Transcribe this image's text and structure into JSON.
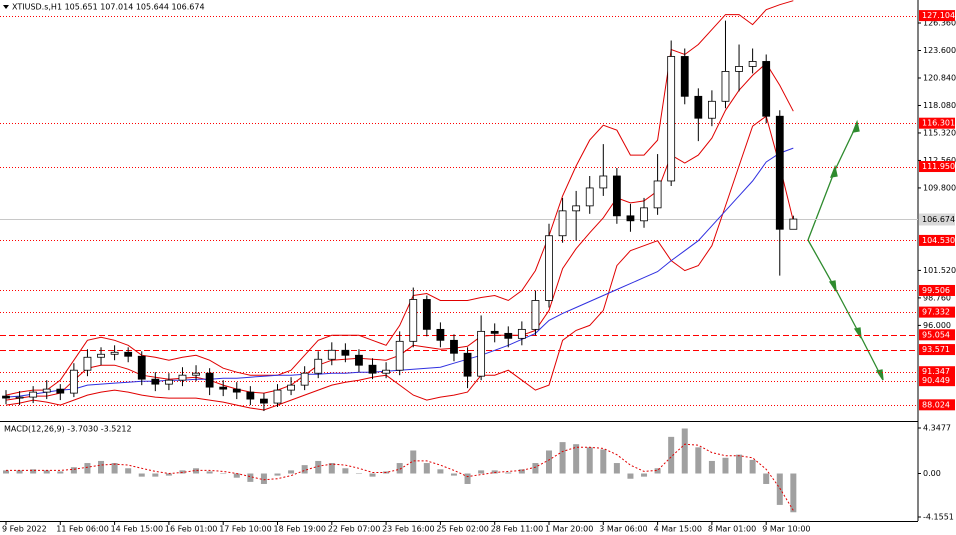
{
  "chart_data": [
    {
      "type": "candlestick",
      "title": "XTIUSD.s,H1  105.651 107.014 105.644 106.674",
      "categories": [
        "9 Feb 2022",
        null,
        null,
        null,
        "11 Feb 06:00",
        null,
        null,
        null,
        "14 Feb 15:00",
        null,
        null,
        null,
        "16 Feb 01:00",
        null,
        null,
        null,
        "17 Feb 10:00",
        null,
        null,
        null,
        "18 Feb 19:00",
        null,
        null,
        null,
        "22 Feb 07:00",
        null,
        null,
        null,
        "23 Feb 16:00",
        null,
        null,
        null,
        "25 Feb 02:00",
        null,
        null,
        null,
        "28 Feb 11:00",
        null,
        null,
        null,
        "1 Mar 20:00",
        null,
        null,
        null,
        "3 Mar 06:00",
        null,
        null,
        null,
        "4 Mar 15:00",
        null,
        null,
        null,
        "8 Mar 01:00",
        null,
        null,
        null,
        "9 Mar 10:00",
        null,
        null
      ],
      "open": [
        88.9,
        88.7,
        88.8,
        89.3,
        89.6,
        89.2,
        91.5,
        92.8,
        93.1,
        93.3,
        92.9,
        90.6,
        90.1,
        90.5,
        91.0,
        91.2,
        89.8,
        89.6,
        89.3,
        88.6,
        88.2,
        89.5,
        90.0,
        91.2,
        92.6,
        93.5,
        93.0,
        92.0,
        91.2,
        91.5,
        94.4,
        98.6,
        95.6,
        94.5,
        93.2,
        90.9,
        95.4,
        95.2,
        94.7,
        95.6,
        98.5,
        105.0,
        107.5,
        108.0,
        109.8,
        111.0,
        107.0,
        106.5,
        107.8,
        110.5,
        123.0,
        119.0,
        116.8,
        118.5,
        121.5,
        122.0,
        122.5,
        117.0,
        105.651
      ],
      "high": [
        89.5,
        89.4,
        89.9,
        90.5,
        90.1,
        92.2,
        93.6,
        93.8,
        94.0,
        93.8,
        93.4,
        91.3,
        91.2,
        91.8,
        92.0,
        91.7,
        90.5,
        90.3,
        89.9,
        89.2,
        90.1,
        90.8,
        91.9,
        93.4,
        94.3,
        94.2,
        93.6,
        92.7,
        92.3,
        95.4,
        99.8,
        99.0,
        96.3,
        95.1,
        93.8,
        97.0,
        96.2,
        95.9,
        96.4,
        99.5,
        106.2,
        108.8,
        109.5,
        111.0,
        114.2,
        111.8,
        108.2,
        108.8,
        113.2,
        124.6,
        123.8,
        119.8,
        119.6,
        126.6,
        124.2,
        123.8,
        123.2,
        117.6,
        107.014
      ],
      "low": [
        88.1,
        88.0,
        88.2,
        88.6,
        88.5,
        88.8,
        90.9,
        92.0,
        92.5,
        92.3,
        90.0,
        89.4,
        89.5,
        89.9,
        90.4,
        89.0,
        88.9,
        88.6,
        88.0,
        87.4,
        87.8,
        89.0,
        89.5,
        90.7,
        92.0,
        92.3,
        91.3,
        90.6,
        90.7,
        91.0,
        93.8,
        94.9,
        93.8,
        92.4,
        89.7,
        90.5,
        94.3,
        93.8,
        94.0,
        95.0,
        97.8,
        104.3,
        104.5,
        107.2,
        109.0,
        106.2,
        105.4,
        105.8,
        107.1,
        110.0,
        118.2,
        114.5,
        116.0,
        117.8,
        119.5,
        121.3,
        116.3,
        101.0,
        105.644
      ],
      "close": [
        88.7,
        88.8,
        89.3,
        89.6,
        89.2,
        91.5,
        92.8,
        93.1,
        93.3,
        92.9,
        90.6,
        90.1,
        90.5,
        91.0,
        91.2,
        89.8,
        89.6,
        89.3,
        88.6,
        88.2,
        89.5,
        90.0,
        91.2,
        92.6,
        93.5,
        93.0,
        92.0,
        91.2,
        91.5,
        94.4,
        98.6,
        95.6,
        94.5,
        93.2,
        90.9,
        95.4,
        95.2,
        94.7,
        95.6,
        98.5,
        105.0,
        107.5,
        108.0,
        109.8,
        111.0,
        107.0,
        106.5,
        107.8,
        110.5,
        123.0,
        119.0,
        116.8,
        118.5,
        121.5,
        122.0,
        122.5,
        117.0,
        105.651,
        106.674
      ],
      "candle_color": "#000000",
      "overlays": [
        {
          "color": "#e00000",
          "values": [
            89.0,
            89.3,
            89.5,
            89.5,
            90.5,
            92.5,
            94.5,
            94.8,
            94.5,
            94.0,
            93.0,
            92.8,
            92.5,
            92.8,
            93.0,
            92.5,
            91.7,
            91.3,
            91.0,
            91.0,
            91.0,
            91.5,
            93.0,
            94.5,
            95.0,
            95.0,
            95.0,
            94.5,
            94.0,
            96.0,
            99.0,
            99.2,
            98.5,
            98.5,
            98.5,
            98.8,
            99.0,
            98.5,
            99.5,
            101.5,
            105.0,
            109.0,
            112.0,
            114.6,
            116.1,
            115.6,
            113.1,
            113.1,
            114.6,
            123.7,
            123.2,
            124.2,
            125.7,
            127.2,
            127.2,
            126.2,
            127.7,
            128.2,
            128.6
          ]
        },
        {
          "color": "#e00000",
          "values": [
            88.5,
            88.7,
            88.9,
            88.9,
            89.2,
            90.5,
            91.7,
            92.0,
            92.0,
            91.6,
            91.0,
            90.8,
            90.6,
            90.7,
            90.8,
            90.5,
            90.0,
            89.6,
            89.3,
            89.2,
            89.5,
            90.0,
            91.0,
            92.0,
            92.5,
            92.6,
            92.7,
            92.6,
            92.5,
            93.0,
            94.0,
            93.8,
            93.6,
            93.7,
            93.9,
            94.9,
            95.0,
            95.0,
            95.0,
            95.5,
            97.5,
            101.7,
            103.7,
            105.3,
            106.8,
            108.8,
            108.3,
            108.5,
            109.5,
            113.1,
            112.3,
            113.1,
            114.8,
            117.6,
            119.6,
            121.1,
            122.3,
            120.1,
            117.5
          ]
        },
        {
          "color": "#e00000",
          "values": [
            88.0,
            88.2,
            88.5,
            88.3,
            88.0,
            88.5,
            89.0,
            89.3,
            89.5,
            89.3,
            89.0,
            88.8,
            88.7,
            88.7,
            88.7,
            88.5,
            88.3,
            88.0,
            87.7,
            87.5,
            88.0,
            88.5,
            89.0,
            89.5,
            90.0,
            90.3,
            90.5,
            90.8,
            91.0,
            90.0,
            89.0,
            88.5,
            88.8,
            89.0,
            89.3,
            91.0,
            91.0,
            91.5,
            90.5,
            89.5,
            90.0,
            94.5,
            95.5,
            96.0,
            97.5,
            102.0,
            103.5,
            104.0,
            104.5,
            102.5,
            101.5,
            102.0,
            104.0,
            108.0,
            112.0,
            116.0,
            117.0,
            112.0,
            106.5
          ]
        },
        {
          "color": "#3030e0",
          "values": [
            88.8,
            88.9,
            89.1,
            89.3,
            89.5,
            89.6,
            90.0,
            90.1,
            90.2,
            90.3,
            90.4,
            90.4,
            90.5,
            90.5,
            90.6,
            90.6,
            90.7,
            90.7,
            90.8,
            90.9,
            91.0,
            91.0,
            91.1,
            91.1,
            91.2,
            91.2,
            91.3,
            91.3,
            91.4,
            91.5,
            91.6,
            91.7,
            91.8,
            92.2,
            92.6,
            93.0,
            93.5,
            94.0,
            94.6,
            95.2,
            96.5,
            97.2,
            97.8,
            98.4,
            99.0,
            99.6,
            100.2,
            100.8,
            101.4,
            102.5,
            103.5,
            104.5,
            106.0,
            107.5,
            109.0,
            110.5,
            112.4,
            113.3,
            113.8
          ]
        }
      ],
      "levels": [
        127.104,
        116.301,
        {
          "value": 111.95,
          "label": "111.950"
        },
        {
          "value": 104.53,
          "label": "104.530"
        },
        99.506,
        97.332,
        95.054,
        93.571,
        91.347,
        90.449,
        88.024
      ],
      "level_styles": [
        "dotted",
        "dotted",
        "dotted",
        "dotted",
        "dotted",
        "dotted",
        "dashed",
        "dashed",
        "dotted",
        "dotted",
        "dotted"
      ],
      "level_color": "#ff0000",
      "ylim": [
        86.5,
        128.67
      ],
      "yticks": [
        {
          "value": 126.36,
          "label": "126.360"
        },
        {
          "value": 123.6,
          "label": "123.600"
        },
        {
          "value": 120.84,
          "label": "120.840"
        },
        {
          "value": 118.08,
          "label": "118.080"
        },
        {
          "value": 115.32,
          "label": "115.320"
        },
        {
          "value": 112.56,
          "label": "112.560"
        },
        {
          "value": 109.8,
          "label": "109.800"
        },
        {
          "value": 101.52,
          "label": "101.520"
        },
        {
          "value": 98.76,
          "label": "98.760"
        },
        {
          "value": 96,
          "label": "96.000"
        }
      ]
    },
    {
      "type": "macd",
      "title": "MACD(12,26,9) -3.7030 -3.5212",
      "histogram": {
        "color": "#a0a0a0",
        "values": [
          0.3,
          0.3,
          0.4,
          0.3,
          0.2,
          0.6,
          1.0,
          1.2,
          1.0,
          0.5,
          -0.3,
          -0.3,
          -0.2,
          0.3,
          0.5,
          0.2,
          0.0,
          -0.4,
          -0.8,
          -1.0,
          -0.2,
          0.3,
          0.8,
          1.2,
          1.0,
          0.5,
          0.0,
          -0.3,
          0.2,
          1.0,
          2.2,
          1.0,
          0.4,
          -0.2,
          -1.0,
          0.3,
          0.3,
          0.1,
          0.4,
          1.0,
          2.2,
          3.0,
          2.8,
          2.5,
          2.3,
          1.0,
          -0.5,
          -0.3,
          0.5,
          3.5,
          4.3,
          2.5,
          1.2,
          1.5,
          1.8,
          1.3,
          -1.0,
          -3.0,
          -3.703
        ]
      },
      "signal": {
        "color": "#e00000",
        "values": [
          0.3,
          0.3,
          0.3,
          0.3,
          0.3,
          0.4,
          0.6,
          0.8,
          0.9,
          0.8,
          0.5,
          0.2,
          0.0,
          0.1,
          0.3,
          0.3,
          0.2,
          0.0,
          -0.3,
          -0.6,
          -0.5,
          -0.2,
          0.3,
          0.7,
          0.9,
          0.8,
          0.5,
          0.1,
          0.1,
          0.4,
          1.2,
          1.2,
          0.8,
          0.3,
          -0.3,
          -0.1,
          0.1,
          0.2,
          0.3,
          0.6,
          1.3,
          2.1,
          2.5,
          2.5,
          2.4,
          1.8,
          0.8,
          0.2,
          0.3,
          1.6,
          2.8,
          2.7,
          2.0,
          1.7,
          1.7,
          1.5,
          0.4,
          -1.4,
          -3.5212
        ]
      },
      "ylim": [
        -4.537,
        4.825
      ],
      "yticks": [
        4.3477,
        {
          "value": 0,
          "label": "0.00"
        },
        -4.1551
      ]
    }
  ]
}
